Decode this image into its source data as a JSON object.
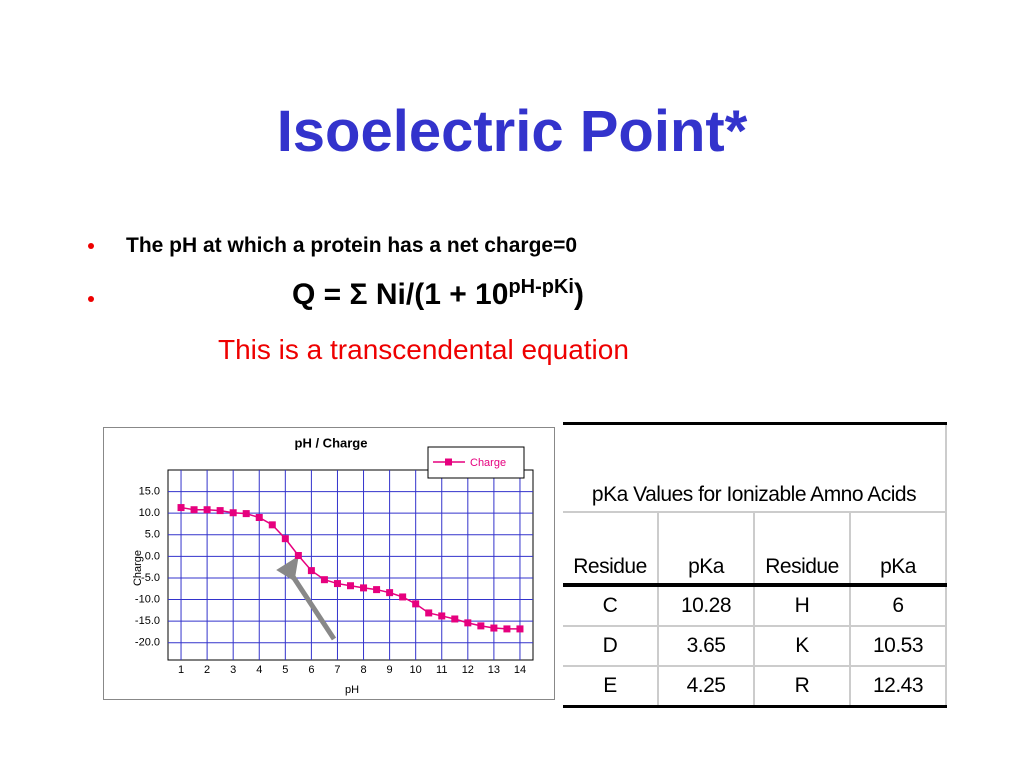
{
  "title": "Isoelectric Point*",
  "bullets": [
    "The pH at which a protein has a net charge=0"
  ],
  "equation": {
    "main": "Q = Σ Ni/(1 + 10",
    "superscript": "pH-pKi",
    "close": ")"
  },
  "note": "This is a transcendental equation",
  "chart_data": {
    "type": "line",
    "title": "pH / Charge",
    "x_label": "pH",
    "y_label": "Charge",
    "x": [
      1,
      1.5,
      2,
      2.5,
      3,
      3.5,
      4,
      4.5,
      5,
      5.5,
      6,
      6.5,
      7,
      7.5,
      8,
      8.5,
      9,
      9.5,
      10,
      10.5,
      11,
      11.5,
      12,
      12.5,
      13,
      13.5,
      14
    ],
    "series": [
      {
        "name": "Charge",
        "color": "#e6007e",
        "values": [
          11.3,
          10.8,
          10.8,
          10.6,
          10.1,
          9.9,
          9.0,
          7.3,
          4.1,
          0.2,
          -3.3,
          -5.4,
          -6.3,
          -6.8,
          -7.3,
          -7.7,
          -8.4,
          -9.4,
          -11.0,
          -13.1,
          -13.8,
          -14.5,
          -15.4,
          -16.1,
          -16.6,
          -16.8,
          -16.8
        ]
      }
    ],
    "xlim": [
      0.5,
      14.5
    ],
    "xticks": [
      1,
      2,
      3,
      4,
      5,
      6,
      7,
      8,
      9,
      10,
      11,
      12,
      13,
      14
    ],
    "ylim": [
      -24,
      20
    ],
    "yticks": [
      {
        "value": 15,
        "label": "15.0"
      },
      {
        "value": 10,
        "label": "10.0"
      },
      {
        "value": 5,
        "label": "5.0"
      },
      {
        "value": 0,
        "label": "0.0"
      },
      {
        "value": -5,
        "label": "-5.0"
      },
      {
        "value": -10,
        "label": "-10.0"
      },
      {
        "value": -15,
        "label": "-15.0"
      },
      {
        "value": -20,
        "label": "-20.0"
      }
    ],
    "grid": true,
    "legend": "upper right"
  },
  "table": {
    "title": "pKa Values for Ionizable Amno Acids",
    "header": [
      "Residue",
      "pKa",
      "Residue",
      "pKa"
    ],
    "rows": [
      [
        "C",
        "10.28",
        "H",
        "6"
      ],
      [
        "D",
        "3.65",
        "K",
        "10.53"
      ],
      [
        "E",
        "4.25",
        "R",
        "12.43"
      ]
    ]
  }
}
